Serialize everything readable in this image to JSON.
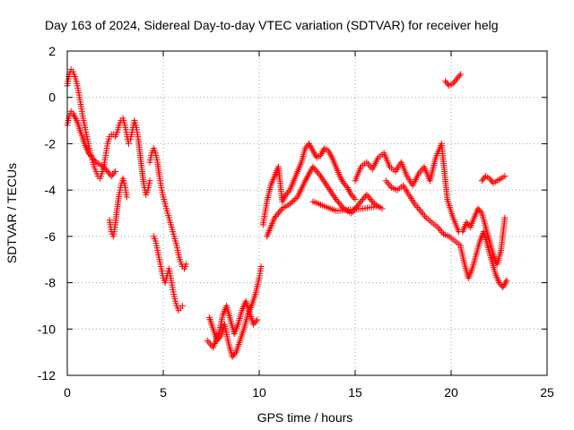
{
  "chart_data": {
    "type": "scatter",
    "title": "Day 163 of 2024, Sidereal Day-to-day VTEC variation (SDTVAR) for receiver helg",
    "xlabel": "GPS time / hours",
    "ylabel": "SDTVAR / TECUs",
    "xlim": [
      0,
      25
    ],
    "ylim": [
      -12,
      2
    ],
    "xticks": [
      0,
      5,
      10,
      15,
      20,
      25
    ],
    "yticks": [
      2,
      0,
      -2,
      -4,
      -6,
      -8,
      -10,
      -12
    ],
    "grid": true,
    "marker": "+",
    "color": "#ff0000",
    "segments": [
      {
        "name": "seg-early-upper",
        "x": [
          0.0,
          0.1,
          0.2,
          0.3,
          0.4,
          0.5,
          0.6,
          0.7,
          0.8,
          0.9,
          1.0,
          1.1,
          1.2,
          1.3,
          1.4,
          1.5,
          1.6,
          1.7,
          1.8,
          1.9,
          2.0,
          2.1,
          2.2,
          2.3,
          2.4,
          2.5,
          2.6,
          2.7,
          2.8,
          2.9,
          3.0,
          3.1,
          3.2
        ],
        "y": [
          0.5,
          1.0,
          1.2,
          1.1,
          0.9,
          0.6,
          0.2,
          -0.3,
          -0.8,
          -1.2,
          -1.6,
          -2.0,
          -2.4,
          -2.7,
          -3.0,
          -3.2,
          -3.4,
          -3.5,
          -3.3,
          -3.0,
          -2.5,
          -2.0,
          -1.7,
          -1.6,
          -1.6,
          -1.7,
          -1.5,
          -1.2,
          -1.0,
          -0.9,
          -1.2,
          -1.6,
          -2.0
        ]
      },
      {
        "name": "seg-early-lower",
        "x": [
          0.0,
          0.1,
          0.2,
          0.3,
          0.5,
          0.7,
          0.9,
          1.1,
          1.3,
          1.5,
          1.7,
          1.9,
          2.1,
          2.3,
          2.5
        ],
        "y": [
          -1.2,
          -0.8,
          -0.6,
          -0.7,
          -1.0,
          -1.5,
          -2.0,
          -2.4,
          -2.6,
          -2.8,
          -2.9,
          -3.0,
          -3.2,
          -3.4,
          -3.2
        ]
      },
      {
        "name": "seg-dip-a",
        "x": [
          2.2,
          2.3,
          2.4,
          2.5,
          2.6,
          2.7,
          2.8,
          2.9,
          3.0,
          3.1
        ],
        "y": [
          -5.3,
          -5.8,
          -6.0,
          -5.5,
          -4.8,
          -4.2,
          -3.8,
          -3.5,
          -3.8,
          -4.3
        ]
      },
      {
        "name": "seg-mid-a",
        "x": [
          3.3,
          3.4,
          3.5,
          3.6,
          3.7,
          3.8,
          3.9,
          4.0,
          4.1,
          4.2,
          4.3
        ],
        "y": [
          -1.8,
          -1.4,
          -1.0,
          -1.3,
          -1.8,
          -2.5,
          -3.2,
          -3.8,
          -4.2,
          -4.0,
          -3.6
        ]
      },
      {
        "name": "seg-mid-b",
        "x": [
          4.3,
          4.4,
          4.5,
          4.6,
          4.7,
          4.8,
          4.9,
          5.0,
          5.1,
          5.2,
          5.3,
          5.4,
          5.5,
          5.6,
          5.7,
          5.8,
          5.9,
          6.0,
          6.1,
          6.2
        ],
        "y": [
          -2.8,
          -2.4,
          -2.2,
          -2.4,
          -2.8,
          -3.4,
          -3.9,
          -4.3,
          -4.6,
          -4.9,
          -5.2,
          -5.5,
          -5.8,
          -6.1,
          -6.4,
          -6.8,
          -7.1,
          -7.3,
          -7.4,
          -7.2
        ]
      },
      {
        "name": "seg-low-c",
        "x": [
          4.5,
          4.6,
          4.7,
          4.8,
          4.9,
          5.0,
          5.1,
          5.2,
          5.3,
          5.4,
          5.5,
          5.6,
          5.7,
          5.8,
          5.9,
          6.0
        ],
        "y": [
          -6.0,
          -6.2,
          -6.6,
          -7.0,
          -7.4,
          -7.8,
          -8.0,
          -7.7,
          -7.4,
          -7.8,
          -8.3,
          -8.7,
          -9.0,
          -9.2,
          -9.1,
          -9.0
        ]
      },
      {
        "name": "seg-trough",
        "x": [
          7.4,
          7.6,
          7.8,
          8.0,
          8.2,
          8.4,
          8.6,
          8.8,
          9.0,
          9.2,
          9.4,
          9.6,
          9.8,
          10.0,
          10.1
        ],
        "y": [
          -9.5,
          -10.0,
          -10.5,
          -10.3,
          -9.8,
          -10.6,
          -11.2,
          -11.0,
          -10.5,
          -10.0,
          -9.4,
          -9.0,
          -8.5,
          -7.8,
          -7.3
        ]
      },
      {
        "name": "seg-trough-b",
        "x": [
          7.3,
          7.6,
          7.9,
          8.1,
          8.3,
          8.5,
          8.7,
          8.9,
          9.1,
          9.3,
          9.5,
          9.7,
          9.9
        ],
        "y": [
          -10.5,
          -10.8,
          -10.2,
          -9.4,
          -9.0,
          -9.6,
          -10.2,
          -9.8,
          -9.2,
          -8.8,
          -9.3,
          -9.8,
          -9.6
        ]
      },
      {
        "name": "seg-rise",
        "x": [
          10.2,
          10.4,
          10.6,
          10.8,
          11.0,
          11.2,
          11.4,
          11.6,
          11.8,
          12.0,
          12.2,
          12.4,
          12.6,
          12.8,
          13.0,
          13.2,
          13.4,
          13.6,
          13.8,
          14.0,
          14.2,
          14.4,
          14.6,
          14.8,
          15.0
        ],
        "y": [
          -5.5,
          -4.5,
          -3.8,
          -3.4,
          -3.0,
          -4.5,
          -4.2,
          -4.0,
          -3.6,
          -3.2,
          -2.8,
          -2.2,
          -2.0,
          -2.3,
          -2.6,
          -2.5,
          -2.2,
          -2.3,
          -2.6,
          -3.0,
          -3.4,
          -3.7,
          -3.9,
          -4.2,
          -4.4
        ]
      },
      {
        "name": "seg-rise-lower",
        "x": [
          10.4,
          10.8,
          11.2,
          11.6,
          12.0,
          12.4,
          12.8,
          13.2,
          13.6,
          14.0,
          14.4,
          14.8,
          15.2,
          15.6,
          16.0,
          16.4
        ],
        "y": [
          -6.0,
          -5.2,
          -4.8,
          -4.6,
          -4.3,
          -3.6,
          -3.0,
          -3.4,
          -3.9,
          -4.4,
          -4.8,
          -5.0,
          -4.6,
          -4.2,
          -4.6,
          -4.8
        ]
      },
      {
        "name": "seg-scatter-mid",
        "x": [
          12.8,
          14.0,
          15.4,
          16.2
        ],
        "y": [
          -4.5,
          -4.9,
          -4.8,
          -4.7
        ]
      },
      {
        "name": "seg-plateau",
        "x": [
          15.0,
          15.3,
          15.6,
          15.9,
          16.2,
          16.5,
          16.8,
          17.1,
          17.4,
          17.7,
          18.0,
          18.3,
          18.6,
          18.9,
          19.2,
          19.5,
          19.8,
          20.1,
          20.4
        ],
        "y": [
          -3.6,
          -3.0,
          -2.8,
          -3.1,
          -2.6,
          -2.4,
          -3.0,
          -3.2,
          -2.8,
          -3.4,
          -3.8,
          -3.3,
          -3.0,
          -3.6,
          -2.6,
          -2.0,
          -4.4,
          -5.2,
          -5.8
        ]
      },
      {
        "name": "seg-plateau-lower",
        "x": [
          16.6,
          16.9,
          17.2,
          17.5,
          17.8,
          18.1,
          18.4,
          18.7,
          19.0,
          19.3,
          19.6,
          19.9,
          20.2,
          20.5
        ],
        "y": [
          -3.6,
          -3.9,
          -4.0,
          -3.8,
          -4.2,
          -4.6,
          -4.9,
          -5.2,
          -5.4,
          -5.6,
          -5.9,
          -6.0,
          -6.2,
          -6.4
        ]
      },
      {
        "name": "seg-island",
        "x": [
          19.7,
          19.9,
          20.1,
          20.3,
          20.5
        ],
        "y": [
          0.7,
          0.5,
          0.6,
          0.8,
          1.0
        ]
      },
      {
        "name": "seg-late-a",
        "x": [
          20.5,
          20.7,
          20.9,
          21.1,
          21.3,
          21.5,
          21.7,
          21.9,
          22.1,
          22.3,
          22.5,
          22.7,
          22.9
        ],
        "y": [
          -6.5,
          -7.2,
          -7.8,
          -7.4,
          -6.8,
          -6.2,
          -5.8,
          -6.4,
          -7.0,
          -7.6,
          -8.0,
          -8.2,
          -7.9
        ]
      },
      {
        "name": "seg-late-b",
        "x": [
          20.6,
          20.8,
          21.0,
          21.2,
          21.4,
          21.6,
          21.8,
          22.0,
          22.2,
          22.4,
          22.6,
          22.8
        ],
        "y": [
          -5.8,
          -5.4,
          -5.6,
          -5.2,
          -4.8,
          -5.0,
          -5.6,
          -6.2,
          -6.8,
          -7.2,
          -6.6,
          -5.2
        ]
      },
      {
        "name": "seg-late-top",
        "x": [
          21.6,
          21.8,
          22.0,
          22.2,
          22.4,
          22.6,
          22.8
        ],
        "y": [
          -3.6,
          -3.4,
          -3.5,
          -3.7,
          -3.6,
          -3.5,
          -3.4
        ]
      }
    ]
  }
}
